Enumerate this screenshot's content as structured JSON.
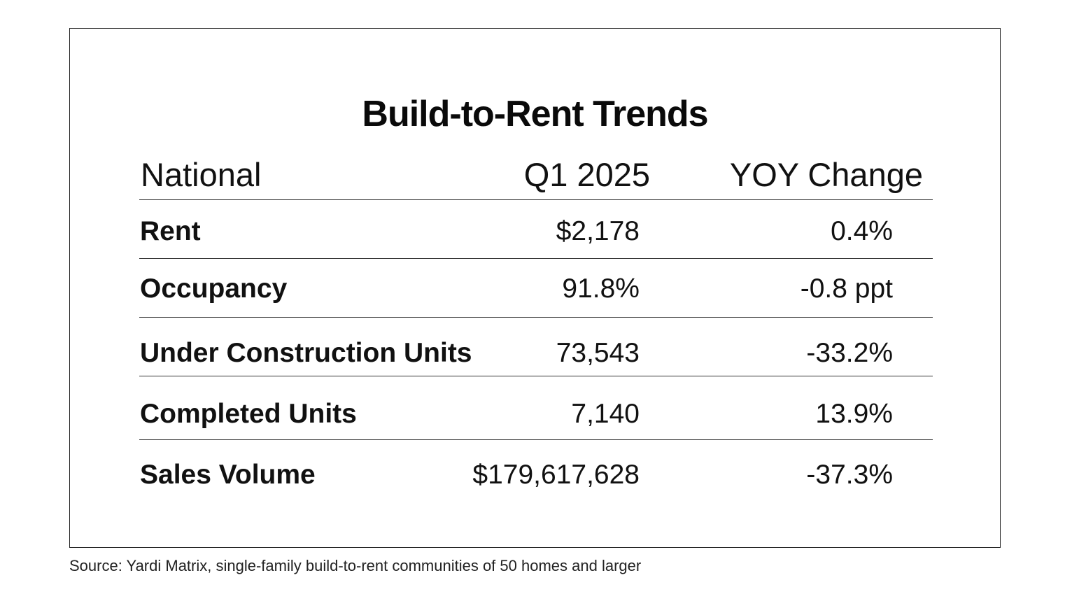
{
  "chart_data": {
    "type": "table",
    "title": "Build-to-Rent Trends",
    "columns": [
      "National",
      "Q1 2025",
      "YOY Change"
    ],
    "rows": [
      {
        "label": "Rent",
        "q1_2025": "$2,178",
        "yoy_change": "0.4%"
      },
      {
        "label": "Occupancy",
        "q1_2025": "91.8%",
        "yoy_change": "-0.8 ppt"
      },
      {
        "label": "Under Construction Units",
        "q1_2025": "73,543",
        "yoy_change": "-33.2%"
      },
      {
        "label": "Completed Units",
        "q1_2025": "7,140",
        "yoy_change": "13.9%"
      },
      {
        "label": "Sales Volume",
        "q1_2025": "$179,617,628",
        "yoy_change": "-37.3%"
      }
    ],
    "source": "Source: Yardi Matrix, single-family build-to-rent communities of 50 homes and larger"
  }
}
